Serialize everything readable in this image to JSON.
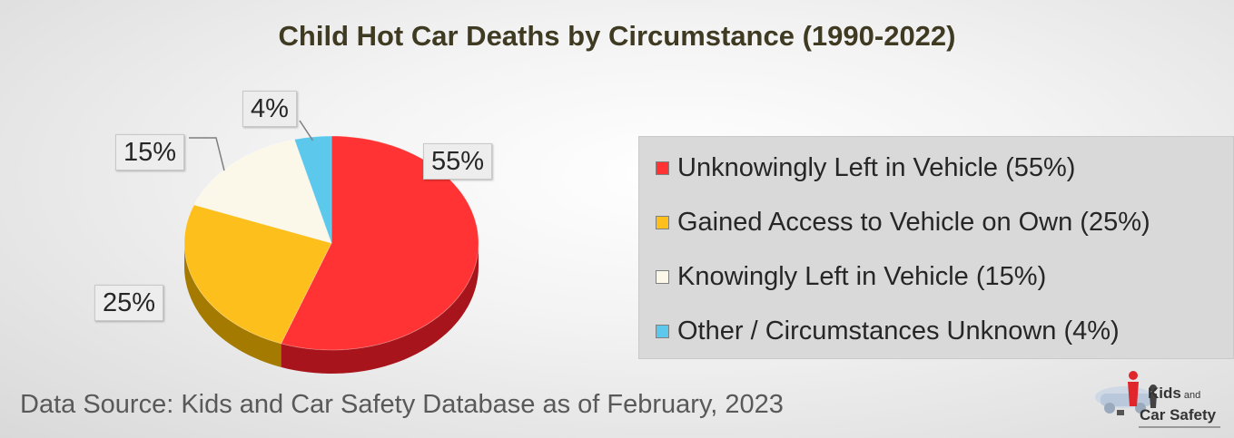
{
  "title": "Child Hot Car Deaths by Circumstance (1990-2022)",
  "source": "Data Source: Kids and Car Safety Database as of February, 2023",
  "logo": {
    "line1": "Kids",
    "line1_small": "and",
    "line2": "Car Safety"
  },
  "colors": {
    "unknowingly": "#ff3333",
    "unknowingly_side": "#a8141b",
    "gained": "#fdbf1c",
    "gained_side": "#a57a00",
    "knowingly": "#fbf8ea",
    "knowingly_side": "#b8b3a0",
    "other": "#5bc8ec",
    "other_side": "#2c8cb0"
  },
  "chart_data": {
    "type": "pie",
    "title": "Child Hot Car Deaths by Circumstance (1990-2022)",
    "legend_position": "right",
    "slices": [
      {
        "name": "Unknowingly Left in Vehicle (55%)",
        "value": 55,
        "label": "55%",
        "color_key": "unknowingly"
      },
      {
        "name": "Gained Access to Vehicle on Own (25%)",
        "value": 25,
        "label": "25%",
        "color_key": "gained"
      },
      {
        "name": "Knowingly Left in Vehicle (15%)",
        "value": 15,
        "label": "15%",
        "color_key": "knowingly"
      },
      {
        "name": "Other / Circumstances Unknown (4%)",
        "value": 4,
        "label": "4%",
        "color_key": "other"
      }
    ]
  }
}
